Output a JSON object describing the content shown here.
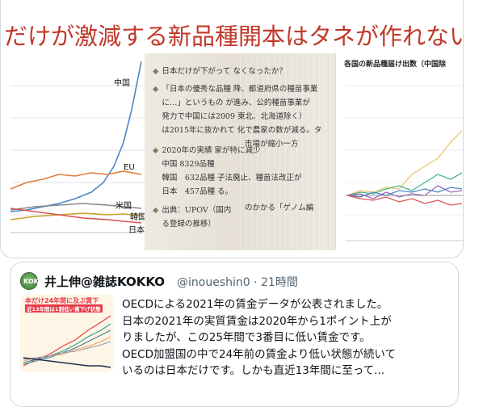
{
  "slide": {
    "title": "だけが激減する新品種開本はタネが作れない国",
    "left_chart": {
      "labels": {
        "china": "中国",
        "eu": "EU",
        "usa": "米国",
        "korea": "韓国",
        "japan": "日本"
      }
    },
    "mid_text": [
      "日本だけが下がって なくなったか？",
      "「日本の優秀な品種 降、都道府県の種苗事業",
      "に…」というもの が進み、公的種苗事業が",
      "発力で中国には2009 東北、北海道除く）",
      "は2015年に抜かれて 化で農家の数が減る。タ",
      "市場が縮小一方",
      "2020年の実績 家が特に減少",
      "中国 8329品種",
      "韓国　632品種 子法廃止、種苗法改正が",
      "日本　457品種 る。",
      "のかかる「ゲノム編",
      "出典：UPOV（国内",
      "る登録の推移）"
    ],
    "right_chart_title": "各国の新品種届け出数（中国除"
  },
  "chart_data": [
    {
      "type": "line",
      "title": "",
      "series": [
        {
          "name": "中国",
          "color": "#4a86c8"
        },
        {
          "name": "EU",
          "color": "#e07b39"
        },
        {
          "name": "米国",
          "color": "#888888"
        },
        {
          "name": "韓国",
          "color": "#c9a227"
        },
        {
          "name": "日本",
          "color": "#d9534f"
        }
      ]
    },
    {
      "type": "line",
      "title": "各国の新品種届け出数（中国除",
      "series": [
        {
          "color": "#e8c46a"
        },
        {
          "color": "#4ab58a"
        },
        {
          "color": "#4a86c8"
        },
        {
          "color": "#d9534f"
        },
        {
          "color": "#9a6cc0"
        }
      ]
    }
  ],
  "tweet": {
    "avatar_text": "KOKKO",
    "username": "井上伸@雑誌KOKKO",
    "handle": "@inoueshin0 · 21時間",
    "thumb_title": "本だけ24年間に及ぶ賃下",
    "thumb_sub": "近13年間は1割低い賃下げ状態",
    "body_lines": [
      "OECDによる2021年の賃金データが公表されました。",
      "日本の2021年の実質賃金は2020年から1ポイント上が",
      "りましたが、この25年間で3番目に低い賃金です。",
      "OECD加盟国の中で24年前の賃金より低い状態が続いて",
      "いるのは日本だけです。しかも直近13年間に至って..."
    ]
  }
}
